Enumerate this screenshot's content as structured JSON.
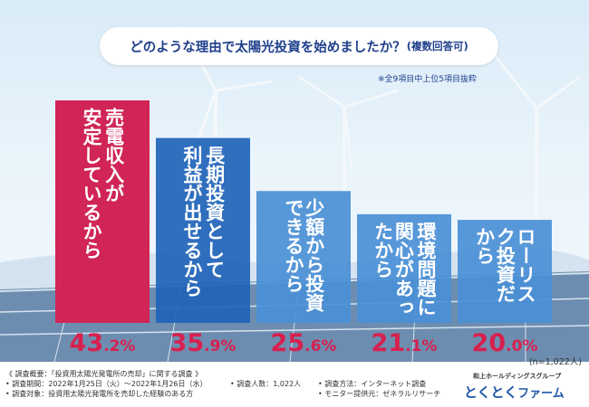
{
  "header": {
    "title": "どのような理由で太陽光投資を始めましたか？",
    "title_sub": "(複数回答可)",
    "note": "※全9項目中上位5項目抜粋"
  },
  "chart_data": {
    "type": "bar",
    "title": "どのような理由で太陽光投資を始めましたか？(複数回答可)",
    "categories": [
      "売電収入が安定しているから",
      "長期投資として利益が出せるから",
      "少額から投資できるから",
      "環境問題に関心があったから",
      "ローリスク投資だから"
    ],
    "label_columns": [
      [
        "売電収入が",
        "安定しているから"
      ],
      [
        "長期投資として",
        "利益が出せるから"
      ],
      [
        "少額から投資できるから"
      ],
      [
        "環境問題に",
        "関心があったから"
      ],
      [
        "ローリスク投資だから"
      ]
    ],
    "values": [
      43.2,
      35.9,
      25.6,
      21.1,
      20.0
    ],
    "value_labels": [
      {
        "int": "43",
        "dec": ".2",
        "unit": "%"
      },
      {
        "int": "35",
        "dec": ".9",
        "unit": "%"
      },
      {
        "int": "25",
        "dec": ".6",
        "unit": "%"
      },
      {
        "int": "21",
        "dec": ".1",
        "unit": "%"
      },
      {
        "int": "20",
        "dec": ".0",
        "unit": "%"
      }
    ],
    "unit": "%",
    "ylim": [
      0,
      45
    ],
    "colors": [
      "#d02556",
      "#1f63b8",
      "#4a8fd6",
      "#4a8fd6",
      "#4a8fd6"
    ],
    "grid": false,
    "legend": "none"
  },
  "sample": "(n=1,022人)",
  "footer": {
    "heading": "《 調査概要：「投資用太陽光発電所の売却」に関する調査 》",
    "period": "• 調査期間：2022年1月25日（火）〜2022年1月26日（水）",
    "target": "• 調査対象：投資用太陽光発電所を売却した経験のある方",
    "count": "• 調査人数：1,022人",
    "method": "• 調査方法：インターネット調査",
    "provider": "• モニター提供元：ゼネラルリサーチ"
  },
  "logo": {
    "company": "和上ホールディングスグループ",
    "kana": "とくとく",
    "word": "ファーム"
  }
}
